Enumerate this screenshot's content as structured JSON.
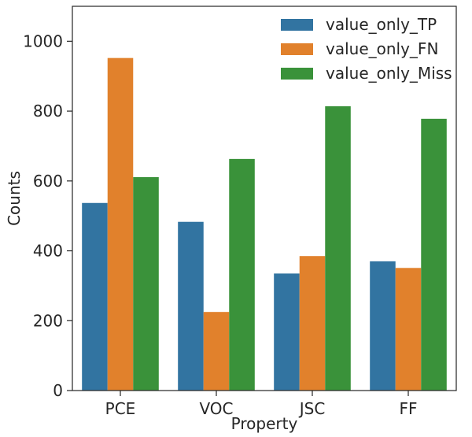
{
  "chart_data": {
    "type": "bar",
    "categories": [
      "PCE",
      "VOC",
      "JSC",
      "FF"
    ],
    "series": [
      {
        "name": "value_only_TP",
        "values": [
          537,
          483,
          335,
          370
        ],
        "color": "#3274a1"
      },
      {
        "name": "value_only_FN",
        "values": [
          952,
          225,
          385,
          351
        ],
        "color": "#e1812c"
      },
      {
        "name": "value_only_Miss",
        "values": [
          611,
          663,
          814,
          778
        ],
        "color": "#3a923a"
      }
    ],
    "title": "",
    "xlabel": "Property",
    "ylabel": "Counts",
    "ylim": [
      0,
      1100
    ],
    "yticks": [
      0,
      200,
      400,
      600,
      800,
      1000
    ],
    "grid": false,
    "legend_position": "top-right"
  }
}
